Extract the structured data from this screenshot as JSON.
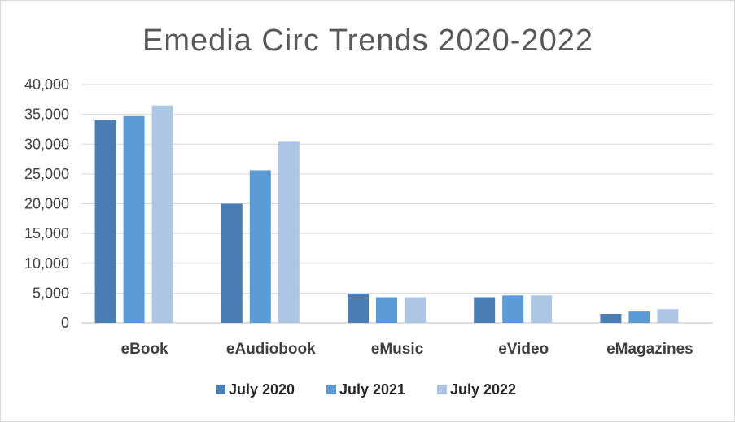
{
  "chart_data": {
    "type": "bar",
    "title": "Emedia Circ Trends 2020-2022",
    "xlabel": "",
    "ylabel": "",
    "categories": [
      "eBook",
      "eAudiobook",
      "eMusic",
      "eVideo",
      "eMagazines"
    ],
    "series": [
      {
        "name": "July 2020",
        "color": "#4a7db3",
        "values": [
          34000,
          20000,
          4900,
          4300,
          1500
        ]
      },
      {
        "name": "July 2021",
        "color": "#5b9bd5",
        "values": [
          34700,
          25600,
          4300,
          4600,
          1900
        ]
      },
      {
        "name": "July 2022",
        "color": "#adc6e6",
        "values": [
          36500,
          30400,
          4300,
          4600,
          2300
        ]
      }
    ],
    "ylim": [
      0,
      40000
    ],
    "yticks": [
      0,
      5000,
      10000,
      15000,
      20000,
      25000,
      30000,
      35000,
      40000
    ],
    "ytick_labels": [
      "0",
      "5,000",
      "10,000",
      "15,000",
      "20,000",
      "25,000",
      "30,000",
      "35,000",
      "40,000"
    ],
    "grid": true,
    "legend_position": "bottom"
  }
}
